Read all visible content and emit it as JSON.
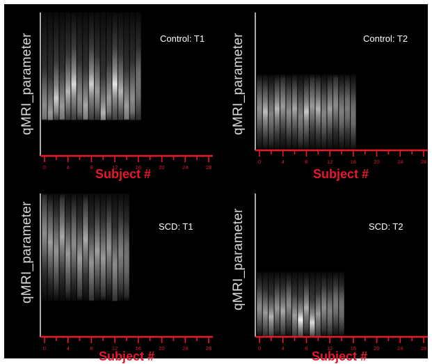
{
  "chart_data": [
    {
      "type": "heatmap",
      "title": "Control: T1",
      "ylabel": "qMRI_parameter",
      "xlabel": "Subject #",
      "x_ticks": [
        "0",
        "4",
        "8",
        "12",
        "16",
        "20",
        "24",
        "28"
      ],
      "xlim": [
        0,
        28
      ],
      "subjects": 17,
      "band_range": [
        0.25,
        1.0
      ],
      "peaks": [
        [
          0.35,
          0.55
        ],
        [
          0.3,
          0.6
        ],
        [
          0.4,
          0.8
        ],
        [
          0.35,
          0.6
        ],
        [
          0.45,
          0.72
        ],
        [
          0.5,
          0.85
        ],
        [
          0.4,
          0.55
        ],
        [
          0.35,
          0.65
        ],
        [
          0.5,
          0.8
        ],
        [
          0.45,
          0.6
        ],
        [
          0.3,
          0.7
        ],
        [
          0.4,
          0.6
        ],
        [
          0.5,
          0.9
        ],
        [
          0.45,
          0.7
        ],
        [
          0.35,
          0.62
        ],
        [
          0.4,
          0.55
        ],
        [
          0.5,
          0.45
        ]
      ],
      "colors": {
        "axis_x": "#e8192c",
        "axis_y": "#e6e6e6"
      }
    },
    {
      "type": "heatmap",
      "title": "Control: T2",
      "ylabel": "qMRI_parameter",
      "xlabel": "Subject #",
      "x_ticks": [
        "0",
        "4",
        "8",
        "12",
        "16",
        "20",
        "24",
        "28"
      ],
      "xlim": [
        0,
        28
      ],
      "subjects": 17,
      "band_range": [
        0.0,
        0.55
      ],
      "peaks": [
        [
          0.3,
          0.55
        ],
        [
          0.28,
          0.75
        ],
        [
          0.26,
          0.5
        ],
        [
          0.3,
          0.72
        ],
        [
          0.32,
          0.6
        ],
        [
          0.28,
          0.55
        ],
        [
          0.3,
          0.65
        ],
        [
          0.25,
          0.5
        ],
        [
          0.28,
          0.78
        ],
        [
          0.32,
          0.6
        ],
        [
          0.3,
          0.7
        ],
        [
          0.27,
          0.52
        ],
        [
          0.3,
          0.62
        ],
        [
          0.33,
          0.55
        ],
        [
          0.28,
          0.5
        ],
        [
          0.3,
          0.48
        ],
        [
          0.26,
          0.45
        ]
      ],
      "colors": {
        "axis_x": "#e8192c",
        "axis_y": "#e6e6e6"
      }
    },
    {
      "type": "heatmap",
      "title": "SCD: T1",
      "ylabel": "qMRI_parameter",
      "xlabel": "Subject #",
      "x_ticks": [
        "0",
        "4",
        "8",
        "12",
        "16",
        "20",
        "24",
        "28"
      ],
      "xlim": [
        0,
        28
      ],
      "subjects": 15,
      "band_range": [
        0.25,
        1.0
      ],
      "peaks": [
        [
          0.72,
          0.55
        ],
        [
          0.66,
          0.62
        ],
        [
          0.6,
          0.58
        ],
        [
          0.7,
          0.65
        ],
        [
          0.58,
          0.6
        ],
        [
          0.65,
          0.55
        ],
        [
          0.55,
          0.62
        ],
        [
          0.68,
          0.66
        ],
        [
          0.52,
          0.58
        ],
        [
          0.6,
          0.62
        ],
        [
          0.55,
          0.6
        ],
        [
          0.62,
          0.58
        ],
        [
          0.5,
          0.55
        ],
        [
          0.58,
          0.5
        ],
        [
          0.55,
          0.45
        ]
      ],
      "colors": {
        "axis_x": "#e8192c",
        "axis_y": "#e6e6e6"
      }
    },
    {
      "type": "heatmap",
      "title": "SCD: T2",
      "ylabel": "qMRI_parameter",
      "xlabel": "Subject #",
      "x_ticks": [
        "0",
        "4",
        "8",
        "12",
        "16",
        "20",
        "24",
        "28"
      ],
      "xlim": [
        0,
        28
      ],
      "subjects": 15,
      "band_range": [
        0.0,
        0.45
      ],
      "peaks": [
        [
          0.2,
          0.55
        ],
        [
          0.17,
          0.6
        ],
        [
          0.14,
          0.7
        ],
        [
          0.2,
          0.58
        ],
        [
          0.18,
          0.65
        ],
        [
          0.22,
          0.55
        ],
        [
          0.15,
          0.62
        ],
        [
          0.12,
          0.95
        ],
        [
          0.2,
          0.68
        ],
        [
          0.1,
          0.85
        ],
        [
          0.16,
          0.6
        ],
        [
          0.2,
          0.55
        ],
        [
          0.18,
          0.5
        ],
        [
          0.22,
          0.48
        ],
        [
          0.2,
          0.45
        ]
      ],
      "colors": {
        "axis_x": "#e8192c",
        "axis_y": "#e6e6e6"
      }
    }
  ]
}
